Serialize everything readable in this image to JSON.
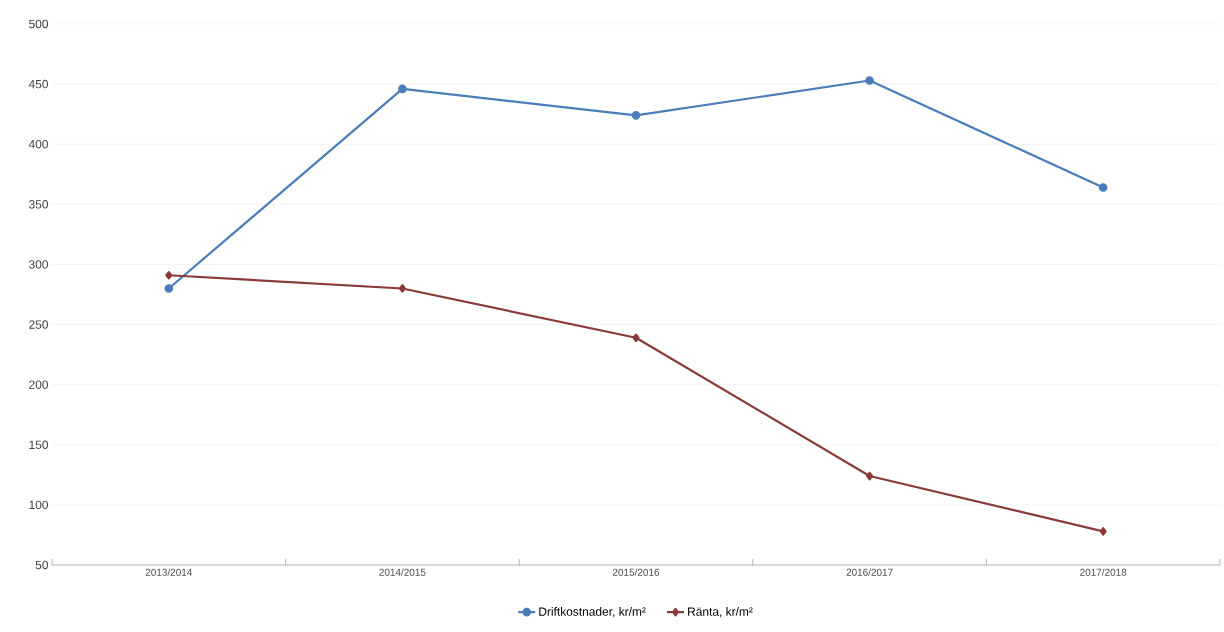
{
  "chart_data": {
    "type": "line",
    "categories": [
      "2013/2014",
      "2014/2015",
      "2015/2016",
      "2016/2017",
      "2017/2018"
    ],
    "series": [
      {
        "name": "Driftkostnader, kr/m²",
        "color": "#4a7ebb",
        "marker": "circle",
        "values": [
          280,
          446,
          424,
          453,
          364
        ]
      },
      {
        "name": "Ränta, kr/m²",
        "color": "#8b3a3a",
        "marker": "diamond",
        "values": [
          291,
          280,
          239,
          124,
          78
        ]
      }
    ],
    "ylim": [
      50,
      500
    ],
    "yticks": [
      50,
      100,
      150,
      200,
      250,
      300,
      350,
      400,
      450,
      500
    ],
    "grid": "y",
    "legend": "bottom",
    "line_style": "solid"
  }
}
